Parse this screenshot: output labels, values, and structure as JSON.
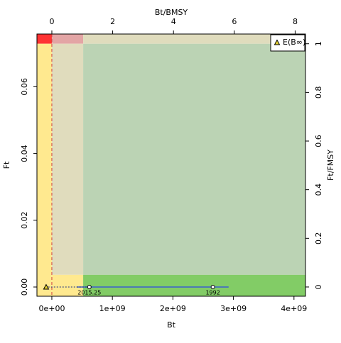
{
  "chart_data": {
    "type": "line",
    "xlabel": "Bt",
    "ylabel": "Ft",
    "x2label": "Bt/BMSY",
    "y2label": "Ft/FMSY",
    "xlim": [
      -246000000,
      4190000000
    ],
    "ylim": [
      -0.00276,
      0.0758
    ],
    "x2lim": [
      -0.49,
      8.34
    ],
    "y2lim": [
      -0.038,
      1.04
    ],
    "xticks": [
      {
        "value": 0,
        "label": "0e+00"
      },
      {
        "value": 1000000000,
        "label": "1e+09"
      },
      {
        "value": 2000000000,
        "label": "2e+09"
      },
      {
        "value": 3000000000,
        "label": "3e+09"
      },
      {
        "value": 4000000000,
        "label": "4e+09"
      }
    ],
    "yticks": [
      {
        "value": 0,
        "label": "0.00"
      },
      {
        "value": 0.02,
        "label": "0.02"
      },
      {
        "value": 0.04,
        "label": "0.04"
      },
      {
        "value": 0.06,
        "label": "0.06"
      }
    ],
    "x2ticks": [
      0,
      2,
      4,
      6,
      8
    ],
    "y2ticks": [
      0,
      0.2,
      0.4,
      0.6,
      0.8,
      1
    ],
    "zones": [
      {
        "x": [
          -0.49,
          0
        ],
        "y": [
          1,
          1.04
        ],
        "color": "#ff3333"
      },
      {
        "x": [
          0,
          1.03
        ],
        "y": [
          1,
          1.04
        ],
        "color": "#e3a5a5"
      },
      {
        "x": [
          1.03,
          8.34
        ],
        "y": [
          1,
          1.04
        ],
        "color": "#e0dcbd"
      },
      {
        "x": [
          -0.49,
          0
        ],
        "y": [
          -0.038,
          1
        ],
        "color": "#ffe98f"
      },
      {
        "x": [
          0,
          1.03
        ],
        "y": [
          0.05,
          1
        ],
        "color": "#e0dcbd"
      },
      {
        "x": [
          0,
          1.03
        ],
        "y": [
          -0.038,
          0.05
        ],
        "color": "#ffe98f"
      },
      {
        "x": [
          1.03,
          8.34
        ],
        "y": [
          0.05,
          1
        ],
        "color": "#bbd3b4"
      },
      {
        "x": [
          1.03,
          8.34
        ],
        "y": [
          -0.038,
          0.05
        ],
        "color": "#82cc66"
      }
    ],
    "ref_x": 0,
    "series": [
      {
        "color": "#3a5fcd",
        "x": [
          2920000000,
          2660000000,
          620000000,
          410000000
        ],
        "values": [
          0,
          0,
          0,
          0
        ]
      }
    ],
    "points": [
      {
        "label": "1992",
        "x": 2660000000,
        "y": 0
      },
      {
        "label": "2015.25",
        "x": 620000000,
        "y": 0
      }
    ],
    "projection": {
      "name": "E(B∞)",
      "x": -94000000,
      "y": 0,
      "color": "#e6d22e"
    },
    "legend": "top-right"
  }
}
